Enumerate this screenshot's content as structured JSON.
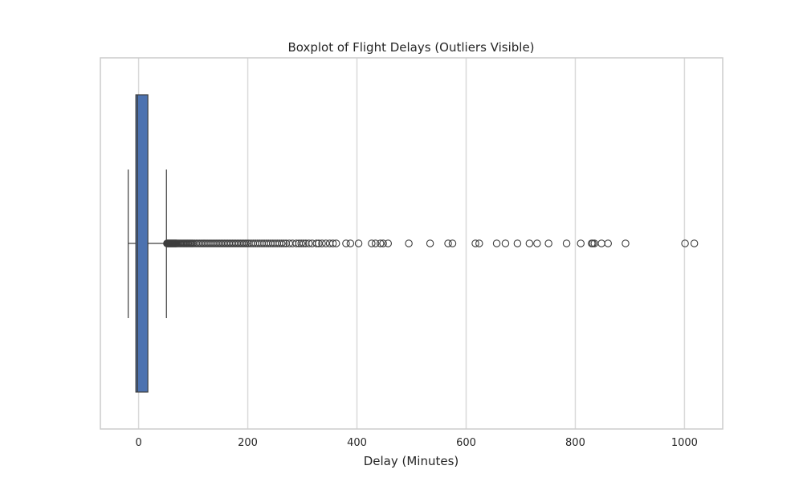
{
  "chart_data": {
    "type": "boxplot",
    "orientation": "horizontal",
    "title": "Boxplot of Flight Delays (Outliers Visible)",
    "xlabel": "Delay (Minutes)",
    "ylabel": "",
    "xlim": [
      -70,
      1070
    ],
    "xticks": [
      0,
      200,
      400,
      600,
      800,
      1000
    ],
    "xtick_labels": [
      "0",
      "200",
      "400",
      "600",
      "800",
      "1000"
    ],
    "grid": "vertical",
    "box": {
      "whisker_low": -19,
      "q1": -5,
      "median": -2,
      "q3": 17,
      "whisker_high": 51,
      "color": "#4c72b0",
      "edge_color": "#3d3d3d"
    },
    "outliers": [
      52,
      53,
      54,
      55,
      56,
      57,
      58,
      59,
      60,
      61,
      62,
      63,
      64,
      65,
      66,
      67,
      68,
      69,
      70,
      72,
      74,
      76,
      78,
      80,
      82,
      84,
      86,
      88,
      90,
      92,
      94,
      96,
      98,
      100,
      103,
      106,
      109,
      112,
      115,
      118,
      121,
      124,
      127,
      130,
      133,
      136,
      139,
      142,
      145,
      148,
      151,
      154,
      157,
      160,
      163,
      166,
      169,
      172,
      175,
      178,
      181,
      184,
      187,
      190,
      193,
      196,
      199,
      202,
      206,
      210,
      214,
      218,
      222,
      226,
      230,
      234,
      238,
      242,
      246,
      250,
      254,
      258,
      262,
      266,
      270,
      276,
      282,
      289,
      294,
      298,
      302,
      306,
      312,
      318,
      326,
      330,
      336,
      343,
      350,
      356,
      362,
      380,
      388,
      403,
      427,
      434,
      443,
      448,
      457,
      495,
      534,
      567,
      575,
      617,
      624,
      656,
      672,
      694,
      716,
      730,
      751,
      784,
      810,
      830,
      832,
      835,
      848,
      860,
      892,
      1001,
      1018
    ]
  },
  "colors": {
    "grid": "#d9d9d9",
    "frame": "#cccccc",
    "outlier_edge": "#3d3d3d"
  }
}
